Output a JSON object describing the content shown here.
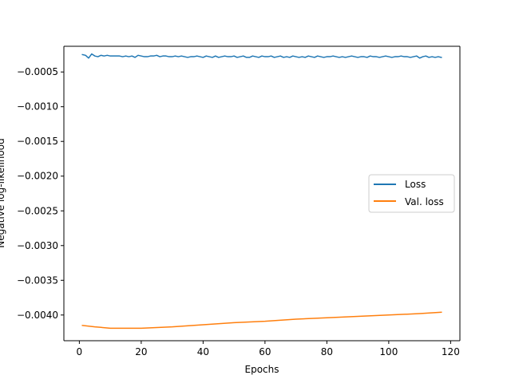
{
  "chart_data": {
    "type": "line",
    "title": "",
    "xlabel": "Epochs",
    "ylabel": "Negative log-likelihood",
    "xlim": [
      -5,
      123
    ],
    "ylim": [
      -0.00437,
      -0.00013
    ],
    "xticks": [
      0,
      20,
      40,
      60,
      80,
      100,
      120
    ],
    "xtick_labels": [
      "0",
      "20",
      "40",
      "60",
      "80",
      "100",
      "120"
    ],
    "yticks": [
      -0.0005,
      -0.001,
      -0.0015,
      -0.002,
      -0.0025,
      -0.003,
      -0.0035,
      -0.004
    ],
    "ytick_labels": [
      "−0.0005",
      "−0.0010",
      "−0.0015",
      "−0.0020",
      "−0.0025",
      "−0.0030",
      "−0.0035",
      "−0.0040"
    ],
    "grid": false,
    "legend_position": "center-right",
    "series": [
      {
        "name": "Loss",
        "color": "#1f77b4",
        "x": [
          1,
          2,
          3,
          4,
          5,
          6,
          7,
          8,
          9,
          10,
          11,
          12,
          13,
          14,
          15,
          16,
          17,
          18,
          19,
          20,
          21,
          22,
          23,
          24,
          25,
          26,
          27,
          28,
          29,
          30,
          31,
          32,
          33,
          34,
          35,
          36,
          37,
          38,
          39,
          40,
          41,
          42,
          43,
          44,
          45,
          46,
          47,
          48,
          49,
          50,
          51,
          52,
          53,
          54,
          55,
          56,
          57,
          58,
          59,
          60,
          61,
          62,
          63,
          64,
          65,
          66,
          67,
          68,
          69,
          70,
          71,
          72,
          73,
          74,
          75,
          76,
          77,
          78,
          79,
          80,
          81,
          82,
          83,
          84,
          85,
          86,
          87,
          88,
          89,
          90,
          91,
          92,
          93,
          94,
          95,
          96,
          97,
          98,
          99,
          100,
          101,
          102,
          103,
          104,
          105,
          106,
          107,
          108,
          109,
          110,
          111,
          112,
          113,
          114,
          115,
          116,
          117
        ],
        "values": [
          -0.00025,
          -0.00026,
          -0.0003,
          -0.00024,
          -0.00027,
          -0.00028,
          -0.00026,
          -0.00027,
          -0.00026,
          -0.00027,
          -0.00027,
          -0.00027,
          -0.00027,
          -0.00028,
          -0.00027,
          -0.00028,
          -0.00027,
          -0.00029,
          -0.00026,
          -0.00027,
          -0.00028,
          -0.00028,
          -0.00027,
          -0.00027,
          -0.00026,
          -0.00028,
          -0.00027,
          -0.00027,
          -0.00028,
          -0.00028,
          -0.00027,
          -0.00028,
          -0.00027,
          -0.00028,
          -0.00029,
          -0.00028,
          -0.00028,
          -0.00027,
          -0.00028,
          -0.00029,
          -0.00027,
          -0.00028,
          -0.00029,
          -0.00027,
          -0.00029,
          -0.00028,
          -0.00027,
          -0.00028,
          -0.00028,
          -0.00027,
          -0.00029,
          -0.00028,
          -0.00027,
          -0.00029,
          -0.00029,
          -0.00027,
          -0.00028,
          -0.00029,
          -0.00027,
          -0.00028,
          -0.00028,
          -0.00027,
          -0.00029,
          -0.00028,
          -0.00027,
          -0.00029,
          -0.00028,
          -0.00029,
          -0.00027,
          -0.00028,
          -0.00029,
          -0.00028,
          -0.00029,
          -0.00027,
          -0.00028,
          -0.00029,
          -0.00027,
          -0.00028,
          -0.00029,
          -0.00028,
          -0.00028,
          -0.00027,
          -0.00028,
          -0.00029,
          -0.00028,
          -0.00029,
          -0.00028,
          -0.00027,
          -0.00028,
          -0.00029,
          -0.00028,
          -0.00028,
          -0.00029,
          -0.00027,
          -0.00028,
          -0.00028,
          -0.00029,
          -0.00028,
          -0.00027,
          -0.00028,
          -0.00029,
          -0.00028,
          -0.00028,
          -0.00027,
          -0.00028,
          -0.00028,
          -0.00029,
          -0.00028,
          -0.00027,
          -0.0003,
          -0.00028,
          -0.00027,
          -0.00029,
          -0.00028,
          -0.00029,
          -0.00028,
          -0.00029
        ]
      },
      {
        "name": "Val. loss",
        "color": "#ff7f0e",
        "x": [
          1,
          5,
          10,
          16,
          20,
          30,
          40,
          50,
          60,
          70,
          80,
          90,
          100,
          110,
          117
        ],
        "values": [
          -0.00415,
          -0.00417,
          -0.00419,
          -0.00419,
          -0.00419,
          -0.00417,
          -0.00414,
          -0.00411,
          -0.00409,
          -0.00406,
          -0.00404,
          -0.00402,
          -0.004,
          -0.00398,
          -0.00396
        ]
      }
    ]
  }
}
